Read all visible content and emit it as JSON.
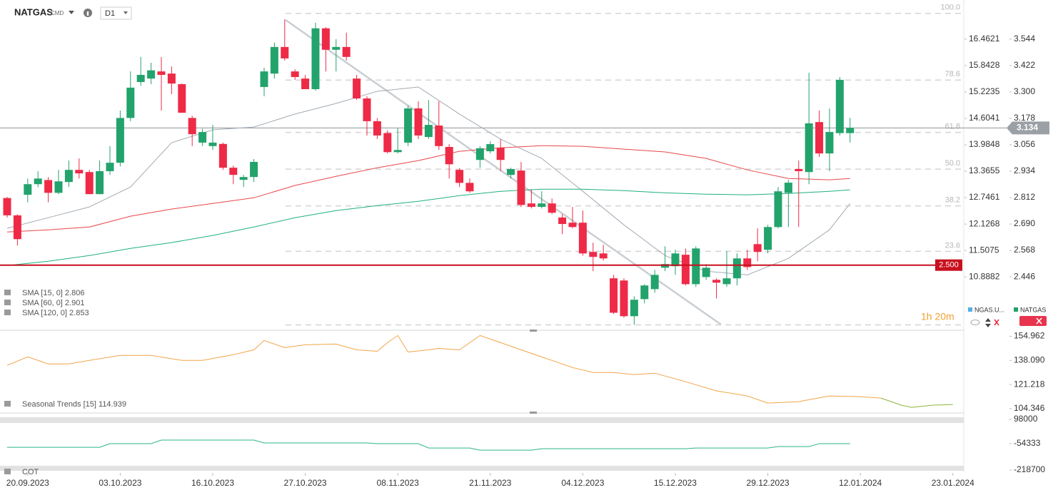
{
  "header": {
    "symbol": "NATGAS",
    "market": "CMD",
    "interval": "D1"
  },
  "chart_data": [
    {
      "type": "candlestick",
      "up_color": "#23a36c",
      "down_color": "#ee2a47",
      "xlim": [
        -0.556,
        93.06
      ],
      "ylim": [
        2.209,
        3.692
      ],
      "yticks": [
        3.544,
        3.422,
        {
          "value": 3.3,
          "label": "3.300"
        },
        3.178,
        3.056,
        2.934,
        2.812,
        {
          "value": 2.69,
          "label": "2.690"
        },
        2.568,
        2.446
      ],
      "y2lim": [
        9.686,
        17.214
      ],
      "y2ticks": [
        16.4621,
        15.8428,
        15.2235,
        14.6041,
        13.9848,
        13.3655,
        12.7461,
        12.1268,
        11.5075,
        10.8882
      ],
      "xticks": [
        {
          "value": 2,
          "label": "20.09.2023"
        },
        {
          "value": 11,
          "label": "03.10.2023"
        },
        {
          "value": 20,
          "label": "16.10.2023"
        },
        {
          "value": 29,
          "label": "27.10.2023"
        },
        {
          "value": 38,
          "label": "08.11.2023"
        },
        {
          "value": 47,
          "label": "21.11.2023"
        },
        {
          "value": 56,
          "label": "04.12.2023"
        },
        {
          "value": 65,
          "label": "15.12.2023"
        },
        {
          "value": 74,
          "label": "29.12.2023"
        },
        {
          "value": 83,
          "label": "12.01.2024"
        },
        {
          "value": 92,
          "label": "23.01.2024"
        }
      ],
      "open": [
        2.81,
        2.73,
        2.825,
        2.874,
        2.893,
        2.834,
        2.884,
        2.94,
        2.93,
        2.828,
        2.934,
        2.973,
        3.18,
        3.346,
        3.362,
        3.395,
        3.385,
        3.336,
        3.18,
        3.066,
        3.05,
        3.06,
        2.95,
        2.894,
        2.907,
        3.323,
        3.385,
        3.508,
        3.395,
        3.362,
        3.313,
        3.594,
        3.495,
        3.508,
        3.362,
        3.27,
        3.165,
        3.11,
        3.022,
        3.066,
        3.224,
        3.092,
        3.145,
        3.046,
        2.94,
        2.88,
        2.986,
        3.026,
        3.043,
        2.917,
        2.937,
        2.785,
        2.769,
        2.785,
        2.72,
        2.696,
        2.696,
        2.561,
        2.554,
        2.439,
        2.429,
        2.264,
        2.343,
        2.389,
        2.488,
        2.495,
        2.548,
        2.412,
        2.445,
        2.432,
        2.412,
        2.439,
        2.531,
        2.597,
        2.571,
        2.676,
        2.834,
        2.944,
        2.93,
        3.161,
        3.016,
        3.11,
        3.11
      ],
      "high": [
        2.815,
        2.735,
        2.9,
        2.934,
        2.907,
        2.94,
        2.983,
        2.993,
        2.94,
        2.983,
        3.05,
        3.214,
        3.395,
        3.462,
        3.435,
        3.462,
        3.418,
        3.339,
        3.19,
        3.13,
        3.148,
        3.066,
        2.96,
        2.917,
        2.99,
        3.412,
        3.528,
        3.636,
        3.405,
        3.379,
        3.62,
        3.6,
        3.544,
        3.574,
        3.379,
        3.28,
        3.18,
        3.122,
        3.132,
        3.237,
        3.257,
        3.263,
        3.257,
        3.059,
        2.947,
        2.9,
        3.05,
        3.072,
        3.082,
        2.95,
        2.977,
        2.851,
        2.841,
        2.808,
        2.736,
        2.769,
        2.752,
        2.604,
        2.594,
        2.455,
        2.439,
        2.356,
        2.412,
        2.478,
        2.587,
        2.571,
        2.577,
        2.587,
        2.505,
        2.439,
        2.564,
        2.554,
        2.571,
        2.67,
        2.686,
        2.861,
        2.894,
        2.983,
        3.389,
        3.214,
        3.224,
        3.369,
        3.18
      ],
      "low": [
        2.72,
        2.59,
        2.79,
        2.86,
        2.79,
        2.828,
        2.861,
        2.9,
        2.828,
        2.828,
        2.917,
        2.956,
        3.165,
        3.329,
        3.336,
        3.214,
        3.29,
        3.204,
        3.05,
        3.05,
        3.032,
        2.94,
        2.874,
        2.861,
        2.884,
        3.28,
        3.362,
        3.445,
        3.356,
        3.313,
        3.306,
        3.395,
        3.395,
        3.445,
        3.263,
        3.099,
        3.083,
        3.016,
        3.016,
        3.05,
        3.083,
        3.083,
        3.032,
        2.9,
        2.861,
        2.834,
        2.95,
        3.016,
        2.934,
        2.9,
        2.769,
        2.762,
        2.762,
        2.736,
        2.643,
        2.67,
        2.544,
        2.472,
        2.521,
        2.274,
        2.257,
        2.224,
        2.323,
        2.372,
        2.472,
        2.455,
        2.406,
        2.399,
        2.432,
        2.346,
        2.399,
        2.406,
        2.478,
        2.518,
        2.554,
        2.67,
        2.676,
        2.676,
        2.874,
        3.0,
        2.934,
        3.099,
        3.066
      ],
      "close": [
        2.73,
        2.62,
        2.874,
        2.9,
        2.834,
        2.887,
        2.94,
        2.924,
        2.828,
        2.934,
        2.973,
        3.18,
        3.32,
        3.379,
        3.4,
        3.379,
        3.339,
        3.204,
        3.105,
        3.115,
        3.066,
        2.95,
        2.917,
        2.907,
        2.977,
        3.395,
        3.508,
        3.455,
        3.369,
        3.313,
        3.594,
        3.495,
        3.508,
        3.462,
        3.27,
        3.165,
        3.099,
        3.022,
        3.032,
        3.224,
        3.099,
        3.148,
        3.05,
        2.966,
        2.88,
        2.841,
        3.04,
        3.059,
        2.986,
        2.944,
        2.778,
        2.769,
        2.785,
        2.742,
        2.69,
        2.676,
        2.554,
        2.538,
        2.531,
        2.28,
        2.264,
        2.34,
        2.406,
        2.455,
        2.505,
        2.554,
        2.412,
        2.577,
        2.488,
        2.419,
        2.439,
        2.531,
        2.491,
        2.561,
        2.676,
        2.841,
        2.881,
        2.934,
        3.155,
        3.016,
        3.115,
        3.356,
        3.134
      ],
      "series": [
        {
          "name": "SMA [15, 0] 2.806",
          "color": "#a3abb3",
          "x": [
            0,
            4,
            8,
            12,
            16,
            20,
            24,
            28,
            32,
            36,
            40,
            44,
            48,
            52,
            56,
            60,
            64,
            68,
            72,
            76,
            80,
            82
          ],
          "values": [
            2.67,
            2.719,
            2.769,
            2.861,
            3.066,
            3.125,
            3.138,
            3.198,
            3.247,
            3.303,
            3.323,
            3.198,
            3.082,
            2.993,
            2.841,
            2.686,
            2.544,
            2.472,
            2.455,
            2.531,
            2.663,
            2.785
          ]
        },
        {
          "name": "SMA [60, 0] 2.901",
          "color": "#e8474a",
          "x": [
            0,
            4,
            8,
            12,
            16,
            20,
            24,
            28,
            32,
            36,
            40,
            44,
            48,
            52,
            56,
            60,
            64,
            68,
            72,
            76,
            80,
            82
          ],
          "values": [
            2.653,
            2.663,
            2.676,
            2.726,
            2.759,
            2.785,
            2.811,
            2.868,
            2.91,
            2.95,
            2.983,
            3.026,
            3.042,
            3.052,
            3.049,
            3.036,
            3.023,
            2.993,
            2.94,
            2.9,
            2.894,
            2.9
          ]
        },
        {
          "name": "SMA [120, 0] 2.853",
          "color": "#1fb07f",
          "x": [
            0,
            4,
            8,
            12,
            16,
            20,
            24,
            28,
            32,
            36,
            40,
            44,
            48,
            52,
            56,
            60,
            64,
            68,
            72,
            76,
            80,
            82
          ],
          "values": [
            2.498,
            2.518,
            2.544,
            2.577,
            2.604,
            2.637,
            2.676,
            2.719,
            2.752,
            2.775,
            2.795,
            2.821,
            2.841,
            2.851,
            2.851,
            2.844,
            2.834,
            2.828,
            2.825,
            2.831,
            2.841,
            2.848
          ]
        }
      ],
      "fibonacci": {
        "range": [
          2.224,
          3.663
        ],
        "levels": [
          {
            "value": 100,
            "label": "100.0"
          },
          78.6,
          61.8,
          {
            "value": 50,
            "label": "50.0"
          },
          38.2,
          23.6
        ]
      },
      "hline": {
        "value": 2.5,
        "label": "2.500",
        "color": "#c8101e"
      },
      "last_price": 3.134,
      "legend": [
        "NGAS.U...",
        "NATGAS"
      ],
      "countdown": "1h 20m"
    },
    {
      "type": "line",
      "ylim": [
        101.86,
        157.69
      ],
      "yticks": [
        154.962,
        {
          "value": 138.09,
          "label": "138.090"
        },
        121.218,
        104.346
      ],
      "series": [
        {
          "name": "Seasonal  Trends [15] 114.939",
          "color": "#f2a448",
          "x": [
            0,
            2,
            4,
            6,
            8,
            11,
            14,
            17,
            19,
            22,
            24,
            25,
            27,
            29,
            32,
            34,
            36,
            37,
            38,
            39,
            41,
            42,
            44,
            45,
            46,
            48,
            50,
            53,
            55,
            57,
            59,
            61,
            63,
            66,
            69,
            72,
            74,
            77,
            80,
            83,
            85
          ],
          "values": [
            134.6,
            140.6,
            135.6,
            135.6,
            138.1,
            141.6,
            141.6,
            138.1,
            138.1,
            142.1,
            145.5,
            152.0,
            147.0,
            149.0,
            149.5,
            145.5,
            144.5,
            150.5,
            155.5,
            144.0,
            145.5,
            146.5,
            145.5,
            150.5,
            155.5,
            150.5,
            145.5,
            138.1,
            133.1,
            129.7,
            129.7,
            128.2,
            129.2,
            123.2,
            116.8,
            113.3,
            108.3,
            109.3,
            113.3,
            112.8,
            111.8
          ]
        },
        {
          "color": "#8db53c",
          "x": [
            85,
            87,
            88,
            90,
            92
          ],
          "values": [
            111.8,
            106.8,
            105.3,
            106.8,
            107.3
          ]
        }
      ]
    },
    {
      "type": "line",
      "ylim": [
        -232000,
        106000
      ],
      "yticks": [
        98000,
        -54333,
        -218700
      ],
      "series": [
        {
          "name": "COT",
          "color": "#2fb38c",
          "x": [
            0,
            9,
            10,
            14,
            15,
            24,
            25,
            35,
            36,
            40,
            41,
            45,
            46,
            51,
            52,
            66,
            67,
            74,
            75,
            78,
            79,
            82
          ],
          "values": [
            -76720,
            -76720,
            -54320,
            -54320,
            -31920,
            -31920,
            -49840,
            -49840,
            -54320,
            -54320,
            -81200,
            -81200,
            -94640,
            -94640,
            -85680,
            -85680,
            -81200,
            -81200,
            -72240,
            -72240,
            -54320,
            -54320
          ]
        }
      ]
    }
  ]
}
